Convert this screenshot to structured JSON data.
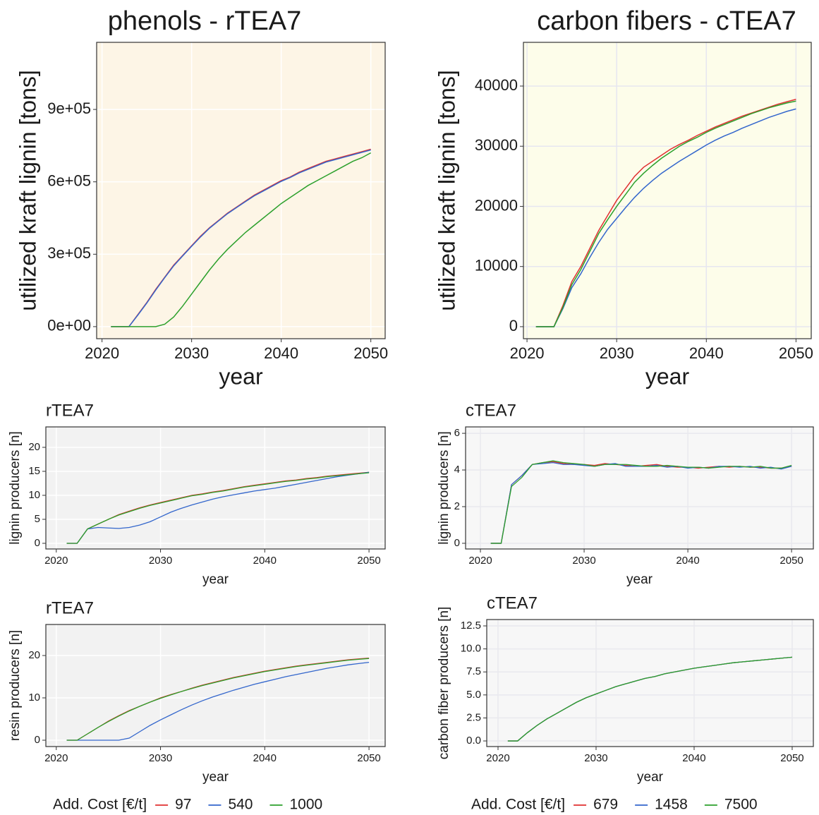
{
  "chart_data": [
    {
      "type": "line",
      "title": "phenols - rTEA7",
      "x_label": "year",
      "y_label": "utilized kraft lignin [tons]",
      "background": "#fdf5e6",
      "grid": true,
      "x": [
        2021,
        2022,
        2023,
        2024,
        2025,
        2026,
        2027,
        2028,
        2029,
        2030,
        2031,
        2032,
        2033,
        2034,
        2035,
        2036,
        2037,
        2038,
        2039,
        2040,
        2041,
        2042,
        2043,
        2044,
        2045,
        2046,
        2047,
        2048,
        2049,
        2050
      ],
      "xlim": [
        2019.4,
        2051.6
      ],
      "xticks": [
        2020,
        2030,
        2040,
        2050
      ],
      "ylim": [
        -50000,
        1178000
      ],
      "yticks": [
        {
          "value": 0,
          "label": "0e+00"
        },
        {
          "value": 300000,
          "label": "3e+05"
        },
        {
          "value": 600000,
          "label": "6e+05"
        },
        {
          "value": 900000,
          "label": "9e+05"
        }
      ],
      "series": [
        {
          "color": "#e03030",
          "values": [
            0,
            0,
            0,
            50000,
            100000,
            155000,
            205000,
            255000,
            295000,
            335000,
            375000,
            410000,
            440000,
            470000,
            495000,
            520000,
            545000,
            565000,
            585000,
            605000,
            620000,
            640000,
            655000,
            670000,
            685000,
            695000,
            705000,
            715000,
            725000,
            735000
          ]
        },
        {
          "color": "#3366cc",
          "values": [
            0,
            0,
            0,
            48000,
            98000,
            152000,
            203000,
            252000,
            293000,
            333000,
            372000,
            408000,
            438000,
            468000,
            493000,
            518000,
            542000,
            562000,
            582000,
            602000,
            618000,
            637000,
            652000,
            667000,
            682000,
            692000,
            702000,
            712000,
            722000,
            732000
          ]
        },
        {
          "color": "#2ca02c",
          "values": [
            0,
            0,
            0,
            0,
            0,
            0,
            10000,
            40000,
            85000,
            135000,
            185000,
            235000,
            280000,
            320000,
            355000,
            390000,
            420000,
            450000,
            480000,
            510000,
            535000,
            560000,
            585000,
            605000,
            625000,
            645000,
            665000,
            685000,
            700000,
            720000
          ]
        }
      ]
    },
    {
      "type": "line",
      "title": "carbon fibers - cTEA7",
      "x_label": "year",
      "y_label": "utilized kraft lignin [tons]",
      "background": "#fdfdea",
      "grid": true,
      "x": [
        2021,
        2022,
        2023,
        2024,
        2025,
        2026,
        2027,
        2028,
        2029,
        2030,
        2031,
        2032,
        2033,
        2034,
        2035,
        2036,
        2037,
        2038,
        2039,
        2040,
        2041,
        2042,
        2043,
        2044,
        2045,
        2046,
        2047,
        2048,
        2049,
        2050
      ],
      "xlim": [
        2019.6,
        2051.7
      ],
      "xticks": [
        2020,
        2030,
        2040,
        2050
      ],
      "ylim": [
        -2000,
        47270
      ],
      "yticks": [
        0,
        10000,
        20000,
        30000,
        40000
      ],
      "series": [
        {
          "color": "#e03030",
          "values": [
            0,
            0,
            0,
            3500,
            7500,
            10000,
            13000,
            16000,
            18500,
            21000,
            23000,
            25000,
            26500,
            27500,
            28500,
            29500,
            30300,
            31000,
            31800,
            32500,
            33200,
            33800,
            34400,
            35000,
            35500,
            36000,
            36500,
            37000,
            37400,
            37800
          ]
        },
        {
          "color": "#3366cc",
          "values": [
            0,
            0,
            0,
            3000,
            6500,
            8800,
            11500,
            14000,
            16200,
            18000,
            19800,
            21500,
            23000,
            24300,
            25500,
            26500,
            27500,
            28400,
            29300,
            30200,
            31000,
            31700,
            32300,
            33000,
            33600,
            34200,
            34800,
            35300,
            35800,
            36200
          ]
        },
        {
          "color": "#2ca02c",
          "values": [
            0,
            0,
            0,
            3200,
            7000,
            9500,
            12500,
            15500,
            17800,
            20000,
            22000,
            24000,
            25500,
            26800,
            28000,
            29000,
            30000,
            30800,
            31500,
            32300,
            33000,
            33600,
            34200,
            34800,
            35400,
            35900,
            36400,
            36800,
            37200,
            37500
          ]
        }
      ]
    },
    {
      "type": "line",
      "title": "rTEA7",
      "x_label": "year",
      "y_label": "lignin producers [n]",
      "background": "#f2f2f2",
      "grid": true,
      "x": [
        2021,
        2022,
        2023,
        2024,
        2025,
        2026,
        2027,
        2028,
        2029,
        2030,
        2031,
        2032,
        2033,
        2034,
        2035,
        2036,
        2037,
        2038,
        2039,
        2040,
        2041,
        2042,
        2043,
        2044,
        2045,
        2046,
        2047,
        2048,
        2049,
        2050
      ],
      "xlim": [
        2019,
        2051.55
      ],
      "xticks": [
        2020,
        2030,
        2040,
        2050
      ],
      "ylim": [
        -1.18,
        24.26
      ],
      "yticks": [
        0,
        5,
        10,
        15,
        20
      ],
      "series": [
        {
          "color": "#e03030",
          "values": [
            0,
            0,
            3,
            4,
            5,
            6,
            6.7,
            7.4,
            8,
            8.5,
            9,
            9.5,
            10,
            10.3,
            10.7,
            11,
            11.4,
            11.8,
            12.1,
            12.4,
            12.7,
            13,
            13.2,
            13.5,
            13.7,
            14,
            14.2,
            14.4,
            14.6,
            14.8
          ]
        },
        {
          "color": "#3366cc",
          "values": [
            0,
            0,
            3,
            3.3,
            3.2,
            3.1,
            3.3,
            3.8,
            4.5,
            5.5,
            6.5,
            7.3,
            8,
            8.6,
            9.2,
            9.7,
            10.1,
            10.5,
            10.9,
            11.2,
            11.5,
            11.9,
            12.3,
            12.7,
            13.1,
            13.5,
            13.9,
            14.2,
            14.5,
            14.8
          ]
        },
        {
          "color": "#2ca02c",
          "values": [
            0,
            0,
            3,
            4,
            5,
            5.9,
            6.6,
            7.3,
            7.9,
            8.4,
            8.9,
            9.4,
            9.9,
            10.2,
            10.6,
            10.9,
            11.3,
            11.7,
            12,
            12.3,
            12.6,
            12.9,
            13.1,
            13.4,
            13.6,
            13.9,
            14.1,
            14.3,
            14.5,
            14.7
          ]
        }
      ]
    },
    {
      "type": "line",
      "title": "cTEA7",
      "x_label": "year",
      "y_label": "lignin producers [n]",
      "background": "#f7f7f7",
      "grid": true,
      "x": [
        2021,
        2022,
        2023,
        2024,
        2025,
        2026,
        2027,
        2028,
        2029,
        2030,
        2031,
        2032,
        2033,
        2034,
        2035,
        2036,
        2037,
        2038,
        2039,
        2040,
        2041,
        2042,
        2043,
        2044,
        2045,
        2046,
        2047,
        2048,
        2049,
        2050
      ],
      "xlim": [
        2018.57,
        2052.1
      ],
      "xticks": [
        2020,
        2030,
        2040,
        2050
      ],
      "ylim": [
        -0.31,
        6.35
      ],
      "yticks": [
        0,
        2,
        4,
        6
      ],
      "series": [
        {
          "color": "#e03030",
          "values": [
            0,
            0,
            3.2,
            3.7,
            4.3,
            4.4,
            4.45,
            4.35,
            4.3,
            4.3,
            4.25,
            4.35,
            4.3,
            4.25,
            4.2,
            4.25,
            4.3,
            4.2,
            4.15,
            4.15,
            4.1,
            4.15,
            4.2,
            4.15,
            4.2,
            4.15,
            4.15,
            4.1,
            4.1,
            4.2
          ]
        },
        {
          "color": "#3366cc",
          "values": [
            0,
            0,
            3.2,
            3.7,
            4.3,
            4.35,
            4.4,
            4.3,
            4.3,
            4.25,
            4.2,
            4.3,
            4.35,
            4.2,
            4.2,
            4.2,
            4.25,
            4.15,
            4.2,
            4.1,
            4.15,
            4.1,
            4.2,
            4.2,
            4.15,
            4.2,
            4.1,
            4.15,
            4.05,
            4.2
          ]
        },
        {
          "color": "#2ca02c",
          "values": [
            0,
            0,
            3.1,
            3.6,
            4.3,
            4.4,
            4.5,
            4.4,
            4.35,
            4.3,
            4.2,
            4.3,
            4.3,
            4.3,
            4.25,
            4.2,
            4.2,
            4.25,
            4.2,
            4.15,
            4.15,
            4.1,
            4.15,
            4.2,
            4.2,
            4.15,
            4.2,
            4.1,
            4.1,
            4.25
          ]
        }
      ]
    },
    {
      "type": "line",
      "title": "rTEA7",
      "x_label": "year",
      "y_label": "resin producers [n]",
      "background": "#f2f2f2",
      "grid": true,
      "legend_title": "Add. Cost [€/t]",
      "x": [
        2021,
        2022,
        2023,
        2024,
        2025,
        2026,
        2027,
        2028,
        2029,
        2030,
        2031,
        2032,
        2033,
        2034,
        2035,
        2036,
        2037,
        2038,
        2039,
        2040,
        2041,
        2042,
        2043,
        2044,
        2045,
        2046,
        2047,
        2048,
        2049,
        2050
      ],
      "xlim": [
        2019,
        2051.55
      ],
      "xticks": [
        2020,
        2030,
        2040,
        2050
      ],
      "ylim": [
        -1.5,
        27.33
      ],
      "yticks": [
        0,
        10,
        20
      ],
      "series": [
        {
          "name": "97",
          "color": "#e03030",
          "values": [
            0,
            0,
            1.5,
            3,
            4.5,
            5.8,
            7,
            8,
            9,
            10,
            10.8,
            11.5,
            12.3,
            13,
            13.6,
            14.2,
            14.8,
            15.3,
            15.8,
            16.3,
            16.7,
            17.1,
            17.5,
            17.8,
            18.1,
            18.4,
            18.7,
            19,
            19.2,
            19.4
          ]
        },
        {
          "name": "540",
          "color": "#3366cc",
          "values": [
            0,
            0,
            0,
            0,
            0,
            0,
            0.5,
            2,
            3.5,
            4.8,
            6,
            7.2,
            8.3,
            9.3,
            10.2,
            11,
            11.8,
            12.5,
            13.2,
            13.8,
            14.4,
            15,
            15.5,
            16,
            16.5,
            17,
            17.4,
            17.8,
            18.1,
            18.4
          ]
        },
        {
          "name": "1000",
          "color": "#2ca02c",
          "values": [
            0,
            0,
            1.5,
            3,
            4.4,
            5.7,
            6.9,
            8,
            9,
            9.9,
            10.7,
            11.5,
            12.2,
            12.9,
            13.5,
            14.1,
            14.7,
            15.2,
            15.7,
            16.2,
            16.6,
            17,
            17.4,
            17.7,
            18,
            18.3,
            18.6,
            18.9,
            19.1,
            19.3
          ]
        }
      ]
    },
    {
      "type": "line",
      "title": "cTEA7",
      "x_label": "year",
      "y_label": "carbon fiber producers [n]",
      "background": "#f7f7f7",
      "grid": true,
      "legend_title": "Add. Cost [€/t]",
      "x": [
        2021,
        2022,
        2023,
        2024,
        2025,
        2026,
        2027,
        2028,
        2029,
        2030,
        2031,
        2032,
        2033,
        2034,
        2035,
        2036,
        2037,
        2038,
        2039,
        2040,
        2041,
        2042,
        2043,
        2044,
        2045,
        2046,
        2047,
        2048,
        2049,
        2050
      ],
      "xlim": [
        2018.85,
        2052.16
      ],
      "xticks": [
        2020,
        2030,
        2040,
        2050
      ],
      "ylim": [
        -0.61,
        13.19
      ],
      "yticks": [
        {
          "value": 0,
          "label": "0.0"
        },
        2.5,
        {
          "value": 5,
          "label": "5.0"
        },
        7.5,
        {
          "value": 10,
          "label": "10.0"
        },
        12.5
      ],
      "series": [
        {
          "name": "679",
          "color": "#e03030",
          "values": [
            0,
            0,
            0.9,
            1.7,
            2.4,
            3,
            3.6,
            4.2,
            4.7,
            5.1,
            5.5,
            5.9,
            6.2,
            6.5,
            6.8,
            7,
            7.3,
            7.5,
            7.7,
            7.9,
            8.05,
            8.2,
            8.35,
            8.5,
            8.6,
            8.7,
            8.8,
            8.9,
            9,
            9.1
          ]
        },
        {
          "name": "1458",
          "color": "#3366cc",
          "values": [
            0,
            0,
            0.9,
            1.7,
            2.4,
            3,
            3.6,
            4.2,
            4.7,
            5.1,
            5.5,
            5.9,
            6.2,
            6.5,
            6.8,
            7,
            7.3,
            7.5,
            7.7,
            7.9,
            8.05,
            8.2,
            8.35,
            8.5,
            8.6,
            8.7,
            8.8,
            8.9,
            9,
            9.1
          ]
        },
        {
          "name": "7500",
          "color": "#2ca02c",
          "values": [
            0,
            0,
            0.9,
            1.7,
            2.4,
            3,
            3.6,
            4.2,
            4.7,
            5.1,
            5.5,
            5.9,
            6.2,
            6.5,
            6.8,
            7,
            7.3,
            7.5,
            7.7,
            7.9,
            8.05,
            8.2,
            8.35,
            8.5,
            8.6,
            8.7,
            8.8,
            8.9,
            9,
            9.1
          ]
        }
      ]
    }
  ]
}
